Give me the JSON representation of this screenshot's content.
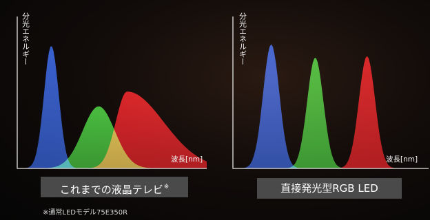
{
  "chart_data": [
    {
      "type": "area",
      "ylabel": "分光エネルギー",
      "xlabel": "波長[nm]",
      "caption": "これまでの液晶テレビ",
      "caption_mark": "※",
      "series": [
        {
          "color_name": "blue",
          "color": "#2f5fd8",
          "peak": 0.83,
          "center": 0.18,
          "width": 0.055
        },
        {
          "color_name": "green",
          "color": "#3fc23a",
          "peak": 0.42,
          "center": 0.43,
          "width": 0.12
        },
        {
          "color_name": "red",
          "color": "#e11b22",
          "peak": 0.52,
          "center": 0.58,
          "width": 0.17
        }
      ]
    },
    {
      "type": "area",
      "ylabel": "分光エネルギー",
      "xlabel": "波長[nm]",
      "caption": "直接発光型RGB LED",
      "series": [
        {
          "color_name": "blue",
          "color": "#2f5fd8",
          "peak": 0.84,
          "center": 0.2,
          "width": 0.06
        },
        {
          "color_name": "green",
          "color": "#3fc23a",
          "peak": 0.75,
          "center": 0.43,
          "width": 0.06
        },
        {
          "color_name": "red",
          "color": "#e11b22",
          "peak": 0.76,
          "center": 0.7,
          "width": 0.06
        }
      ]
    }
  ],
  "footnote": "※通常LEDモデル75E350R"
}
